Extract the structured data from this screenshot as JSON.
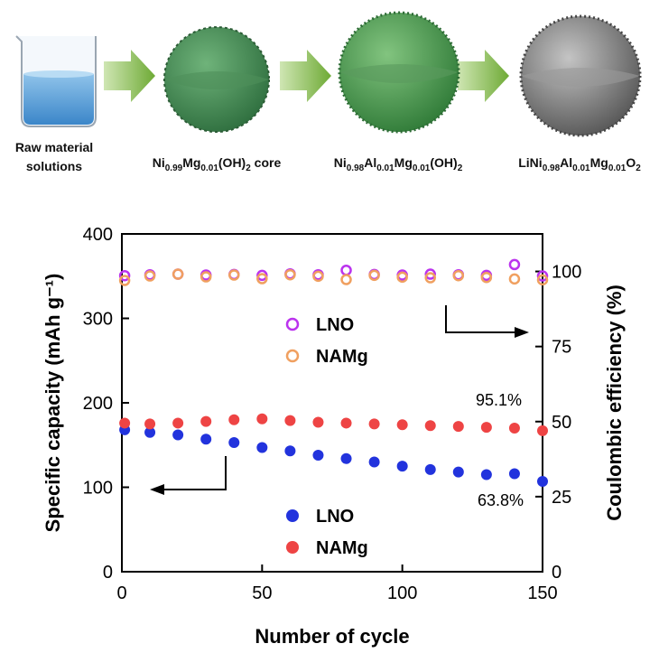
{
  "process": {
    "steps": [
      {
        "icon": "beaker-icon",
        "line1": "Raw material",
        "line2": "solutions"
      },
      {
        "icon": "green-sphere-icon",
        "base": "Ni",
        "parts": [
          [
            "0.99",
            "sub"
          ],
          [
            "Mg",
            ""
          ],
          [
            "0.01",
            "sub"
          ],
          [
            "(OH)",
            ""
          ],
          [
            "2",
            "sub"
          ],
          [
            "  core",
            ""
          ]
        ]
      },
      {
        "icon": "green-sphere-shell-icon",
        "base": "Ni",
        "parts": [
          [
            "0.98",
            "sub"
          ],
          [
            "Al",
            ""
          ],
          [
            "0.01",
            "sub"
          ],
          [
            "Mg",
            ""
          ],
          [
            "0.01",
            "sub"
          ],
          [
            "(OH)",
            ""
          ],
          [
            "2",
            "sub"
          ]
        ]
      },
      {
        "icon": "gray-sphere-icon",
        "base": "LiNi",
        "parts": [
          [
            "0.98",
            "sub"
          ],
          [
            "Al",
            ""
          ],
          [
            "0.01",
            "sub"
          ],
          [
            "Mg",
            ""
          ],
          [
            "0.01",
            "sub"
          ],
          [
            "O",
            ""
          ],
          [
            "2",
            "sub"
          ]
        ]
      }
    ],
    "arrow_color": "#7db13d"
  },
  "chart_data": {
    "type": "scatter",
    "xlabel": "Number of cycle",
    "ylabel_left": "Specific capacity (mAh g⁻¹)",
    "ylabel_right": "Coulombic efficiency (%)",
    "xlim": [
      0,
      150
    ],
    "ylim_left": [
      0,
      400
    ],
    "ylim_right": [
      0,
      112.5
    ],
    "xticks": [
      0,
      50,
      100,
      150
    ],
    "yticks_left": [
      0,
      100,
      200,
      300,
      400
    ],
    "yticks_right": [
      0,
      25,
      50,
      75,
      100
    ],
    "series": [
      {
        "name": "LNO",
        "axis": "left",
        "marker": "filled",
        "color": "#2233dd",
        "x": [
          1,
          10,
          20,
          30,
          40,
          50,
          60,
          70,
          80,
          90,
          100,
          110,
          120,
          130,
          140,
          150
        ],
        "values": [
          168,
          165,
          162,
          157,
          153,
          147,
          143,
          138,
          134,
          130,
          125,
          121,
          118,
          115,
          116,
          107
        ]
      },
      {
        "name": "NAMg",
        "axis": "left",
        "marker": "filled",
        "color": "#ee4444",
        "x": [
          1,
          10,
          20,
          30,
          40,
          50,
          60,
          70,
          80,
          90,
          100,
          110,
          120,
          130,
          140,
          150
        ],
        "values": [
          176,
          175,
          176,
          178,
          180,
          181,
          179,
          177,
          176,
          175,
          174,
          173,
          172,
          171,
          170,
          167
        ]
      },
      {
        "name": "LNO",
        "axis": "right",
        "marker": "open",
        "color": "#bb33ee",
        "x": [
          1,
          10,
          20,
          30,
          40,
          50,
          60,
          70,
          80,
          90,
          100,
          110,
          120,
          130,
          140,
          150
        ],
        "values": [
          98.6,
          98.9,
          99.1,
          98.8,
          99.0,
          98.7,
          99.2,
          98.9,
          100.4,
          99.0,
          98.8,
          99.1,
          98.9,
          98.7,
          102.3,
          98.5
        ]
      },
      {
        "name": "NAMg",
        "axis": "right",
        "marker": "open",
        "color": "#f0a060",
        "x": [
          1,
          10,
          20,
          30,
          40,
          50,
          60,
          70,
          80,
          90,
          100,
          110,
          120,
          130,
          140,
          150
        ],
        "values": [
          97.0,
          98.5,
          99.1,
          98.2,
          98.8,
          97.6,
          98.9,
          98.4,
          97.3,
          98.7,
          98.1,
          97.9,
          98.6,
          98.0,
          97.5,
          97.2
        ]
      }
    ],
    "legend_right": [
      {
        "name": "LNO",
        "color": "#bb33ee"
      },
      {
        "name": "NAMg",
        "color": "#f0a060"
      }
    ],
    "legend_left": [
      {
        "name": "LNO",
        "color": "#2233dd"
      },
      {
        "name": "NAMg",
        "color": "#ee4444"
      }
    ],
    "annotations": {
      "namg_retention": "95.1%",
      "lno_retention": "63.8%"
    }
  }
}
